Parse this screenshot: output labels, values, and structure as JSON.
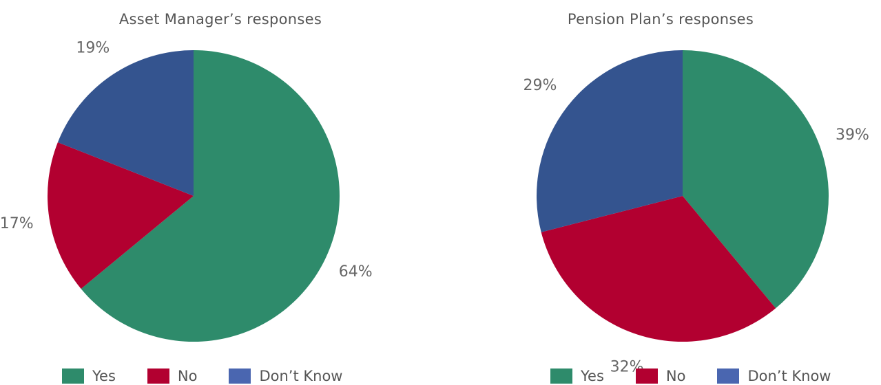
{
  "chart_data": [
    {
      "type": "pie",
      "title": "Asset Manager’s responses",
      "categories": [
        "Yes",
        "No",
        "Don’t Know"
      ],
      "values": [
        64,
        17,
        19
      ],
      "data_labels": [
        "64%",
        "17%",
        "19%"
      ],
      "colors": [
        "#2e8b6b",
        "#b20030",
        "#34548f"
      ],
      "legend": {
        "position": "bottom",
        "entries": [
          "Yes",
          "No",
          "Don’t Know"
        ],
        "colors": [
          "#2e8b6b",
          "#b20030",
          "#4a66b0"
        ]
      }
    },
    {
      "type": "pie",
      "title": "Pension Plan’s responses",
      "categories": [
        "Yes",
        "No",
        "Don’t Know"
      ],
      "values": [
        39,
        32,
        29
      ],
      "data_labels": [
        "39%",
        "32%",
        "29%"
      ],
      "colors": [
        "#2e8b6b",
        "#b20030",
        "#34548f"
      ],
      "legend": {
        "position": "bottom",
        "entries": [
          "Yes",
          "No",
          "Don’t Know"
        ],
        "colors": [
          "#2e8b6b",
          "#b20030",
          "#4a66b0"
        ]
      }
    }
  ]
}
